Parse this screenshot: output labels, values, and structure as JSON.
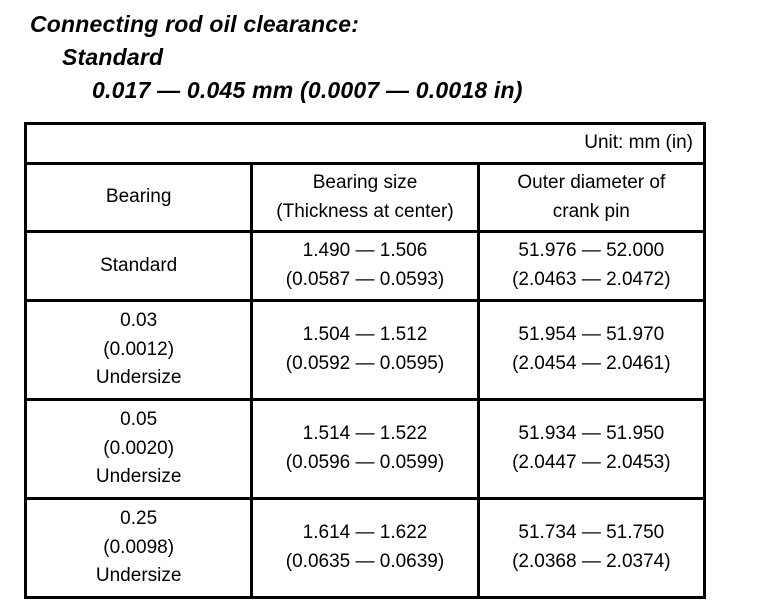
{
  "heading": {
    "line1": "Connecting rod oil clearance:",
    "line2": "Standard",
    "line3": "0.017 — 0.045 mm (0.0007 — 0.0018 in)"
  },
  "table": {
    "unit_label": "Unit: mm (in)",
    "columns": [
      "Bearing",
      "Bearing size\n(Thickness at center)",
      "Outer diameter of\ncrank pin"
    ],
    "rows": [
      {
        "bearing": "Standard",
        "bearing_size": "1.490 — 1.506\n(0.0587 — 0.0593)",
        "crank_pin": "51.976 — 52.000\n(2.0463 — 2.0472)"
      },
      {
        "bearing": "0.03\n(0.0012)\nUndersize",
        "bearing_size": "1.504 — 1.512\n(0.0592 — 0.0595)",
        "crank_pin": "51.954 — 51.970\n(2.0454 — 2.0461)"
      },
      {
        "bearing": "0.05\n(0.0020)\nUndersize",
        "bearing_size": "1.514 — 1.522\n(0.0596 — 0.0599)",
        "crank_pin": "51.934 — 51.950\n(2.0447 — 2.0453)"
      },
      {
        "bearing": "0.25\n(0.0098)\nUndersize",
        "bearing_size": "1.614 — 1.622\n(0.0635 — 0.0639)",
        "crank_pin": "51.734 — 51.750\n(2.0368 — 2.0374)"
      }
    ]
  },
  "colors": {
    "text": "#000000",
    "background": "#ffffff",
    "border": "#000000"
  }
}
